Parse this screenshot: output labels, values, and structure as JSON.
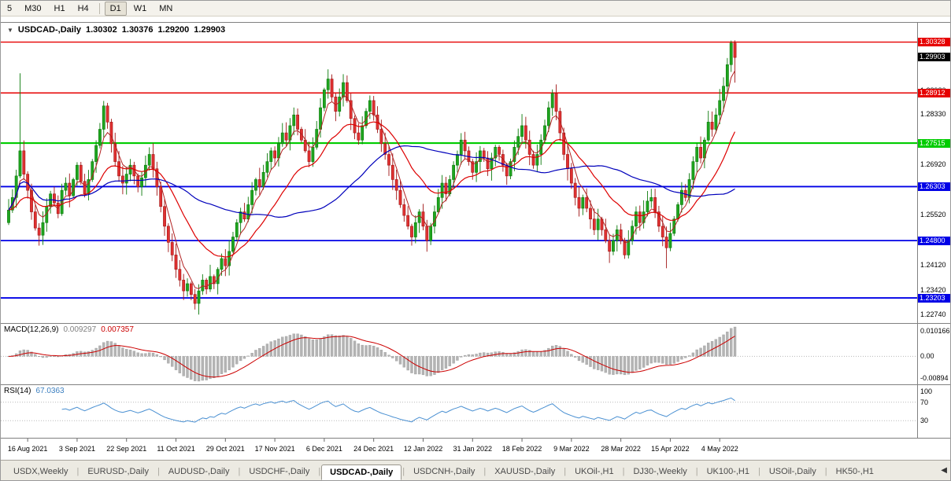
{
  "toolbar": {
    "timeframes": [
      {
        "label": "5",
        "active": false
      },
      {
        "label": "M30",
        "active": false
      },
      {
        "label": "H1",
        "active": false
      },
      {
        "label": "H4",
        "active": false
      },
      {
        "label": "D1",
        "active": true
      },
      {
        "label": "W1",
        "active": false
      },
      {
        "label": "MN",
        "active": false
      }
    ]
  },
  "chart": {
    "header": {
      "symbol": "USDCAD-,Daily",
      "open": "1.30302",
      "high": "1.30376",
      "low": "1.29200",
      "close": "1.29903"
    },
    "collapse_icon": "▼",
    "levels": [
      {
        "price": 1.30328,
        "label": "1.30328",
        "color": "#e60000",
        "width": 1.4
      },
      {
        "price": 1.28912,
        "label": "1.28912",
        "color": "#e60000",
        "width": 1.4
      },
      {
        "price": 1.27515,
        "label": "1.27515",
        "color": "#00cc00",
        "width": 2.2
      },
      {
        "price": 1.26303,
        "label": "1.26303",
        "color": "#0000e6",
        "width": 1.8
      },
      {
        "price": 1.248,
        "label": "1.24800",
        "color": "#0000e6",
        "width": 1.8
      },
      {
        "price": 1.23203,
        "label": "1.23203",
        "color": "#0000e6",
        "width": 1.8
      }
    ],
    "current_price": {
      "price": 1.29903,
      "label": "1.29903",
      "bg": "#000000"
    },
    "axis_labels": [
      {
        "price": 1.2898,
        "label": "1.28980"
      },
      {
        "price": 1.2833,
        "label": "1.28330"
      },
      {
        "price": 1.2692,
        "label": "1.26920"
      },
      {
        "price": 1.2552,
        "label": "1.25520"
      },
      {
        "price": 1.2412,
        "label": "1.24120"
      },
      {
        "price": 1.2342,
        "label": "1.23420"
      },
      {
        "price": 1.2274,
        "label": "1.22740"
      }
    ]
  },
  "indicators": {
    "macd": {
      "label": "MACD(12,26,9)",
      "value_main": "0.009297",
      "value_signal": "0.007357",
      "axis_top": "0.010166",
      "axis_mid": "0.00",
      "axis_bottom": "-0.00894",
      "histogram_color": "#b4b4b4",
      "signal_color": "#cc0000"
    },
    "rsi": {
      "label": "RSI(14)",
      "value": "67.0363",
      "axis_top": "100",
      "axis_upper": "70",
      "axis_lower": "30",
      "line_color": "#4a90d2",
      "level_lines": [
        70,
        30
      ]
    }
  },
  "x_axis": {
    "dates": [
      "16 Aug 2021",
      "3 Sep 2021",
      "22 Sep 2021",
      "11 Oct 2021",
      "29 Oct 2021",
      "17 Nov 2021",
      "6 Dec 2021",
      "24 Dec 2021",
      "12 Jan 2022",
      "31 Jan 2022",
      "18 Feb 2022",
      "9 Mar 2022",
      "28 Mar 2022",
      "15 Apr 2022",
      "4 May 2022"
    ],
    "first_label_index": 5,
    "label_step": 13
  },
  "tabs": {
    "items": [
      {
        "label": "USDX,Weekly",
        "active": false
      },
      {
        "label": "EURUSD-,Daily",
        "active": false
      },
      {
        "label": "AUDUSD-,Daily",
        "active": false
      },
      {
        "label": "USDCHF-,Daily",
        "active": false
      },
      {
        "label": "USDCAD-,Daily",
        "active": true
      },
      {
        "label": "USDCNH-,Daily",
        "active": false
      },
      {
        "label": "XAUUSD-,Daily",
        "active": false
      },
      {
        "label": "UKOil-,H1",
        "active": false
      },
      {
        "label": "DJ30-,Weekly",
        "active": false
      },
      {
        "label": "UK100-,H1",
        "active": false
      },
      {
        "label": "USOil-,Daily",
        "active": false
      },
      {
        "label": "HK50-,H1",
        "active": false
      }
    ],
    "scroll_left_icon": "◀"
  },
  "chart_data": {
    "type": "candlestick",
    "symbol": "USDCAD",
    "timeframe": "Daily",
    "title": "USDCAD-,Daily",
    "price_range": {
      "max": 1.308,
      "min": 1.2257
    },
    "up_color": "#1fa51f",
    "up_stroke": "#0b7a0b",
    "down_color": "#e03131",
    "down_stroke": "#a01616",
    "closes": [
      1.2565,
      1.26,
      1.266,
      1.273,
      1.2665,
      1.262,
      1.256,
      1.2515,
      1.2495,
      1.253,
      1.2575,
      1.261,
      1.2585,
      1.2555,
      1.262,
      1.264,
      1.2605,
      1.265,
      1.269,
      1.2645,
      1.261,
      1.265,
      1.27,
      1.2745,
      1.279,
      1.2855,
      1.281,
      1.275,
      1.27,
      1.266,
      1.264,
      1.2665,
      1.269,
      1.266,
      1.263,
      1.2655,
      1.269,
      1.272,
      1.268,
      1.263,
      1.2575,
      1.252,
      1.2475,
      1.244,
      1.24,
      1.237,
      1.234,
      1.236,
      1.233,
      1.2305,
      1.234,
      1.237,
      1.2345,
      1.238,
      1.236,
      1.24,
      1.243,
      1.241,
      1.245,
      1.249,
      1.253,
      1.256,
      1.254,
      1.258,
      1.262,
      1.265,
      1.263,
      1.267,
      1.27,
      1.273,
      1.271,
      1.275,
      1.278,
      1.276,
      1.28,
      1.283,
      1.279,
      1.276,
      1.273,
      1.27,
      1.274,
      1.279,
      1.285,
      1.29,
      1.293,
      1.288,
      1.284,
      1.288,
      1.292,
      1.287,
      1.282,
      1.278,
      1.276,
      1.28,
      1.284,
      1.287,
      1.283,
      1.279,
      1.275,
      1.272,
      1.269,
      1.265,
      1.262,
      1.258,
      1.255,
      1.252,
      1.249,
      1.253,
      1.256,
      1.252,
      1.248,
      1.252,
      1.256,
      1.26,
      1.264,
      1.261,
      1.265,
      1.269,
      1.272,
      1.276,
      1.273,
      1.27,
      1.267,
      1.27,
      1.273,
      1.271,
      1.268,
      1.271,
      1.274,
      1.272,
      1.269,
      1.266,
      1.27,
      1.274,
      1.277,
      1.28,
      1.276,
      1.272,
      1.269,
      1.272,
      1.276,
      1.28,
      1.285,
      1.289,
      1.284,
      1.278,
      1.272,
      1.268,
      1.264,
      1.26,
      1.257,
      1.26,
      1.257,
      1.254,
      1.251,
      1.254,
      1.251,
      1.248,
      1.245,
      1.248,
      1.251,
      1.248,
      1.244,
      1.248,
      1.252,
      1.256,
      1.253,
      1.256,
      1.259,
      1.26,
      1.256,
      1.252,
      1.249,
      1.246,
      1.25,
      1.254,
      1.258,
      1.262,
      1.26,
      1.265,
      1.27,
      1.274,
      1.271,
      1.276,
      1.281,
      1.279,
      1.283,
      1.287,
      1.291,
      1.297,
      1.303,
      1.299
    ],
    "wick_overrides": {
      "3": {
        "hi": 1.2946
      },
      "49": {
        "lo": 1.2288
      },
      "84": {
        "hi": 1.2957
      },
      "143": {
        "hi": 1.2901
      },
      "173": {
        "lo": 1.2403
      },
      "190": {
        "hi": 1.3037
      },
      "191": {
        "hi": 1.30376,
        "lo": 1.292
      }
    },
    "moving_averages": [
      {
        "type": "ema",
        "period": 5,
        "color": "#b22222",
        "width": 1
      },
      {
        "type": "ema",
        "period": 20,
        "color": "#dd0000",
        "width": 1.2
      },
      {
        "type": "sma",
        "period": 45,
        "color": "#0000bb",
        "width": 1.2
      }
    ]
  }
}
